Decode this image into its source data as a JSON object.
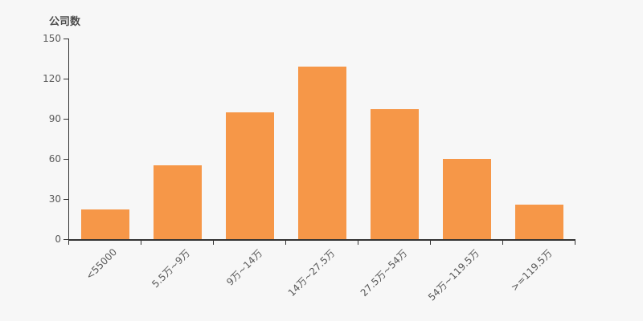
{
  "header": {
    "axis_title": "公司数"
  },
  "colors": {
    "background": "#f7f7f7",
    "bar": "#f69748",
    "axis": "#333333",
    "tick_label": "#5a5a5a",
    "title": "#4d4d4d"
  },
  "chart_data": {
    "type": "bar",
    "title": "公司数",
    "categories": [
      "<55000",
      "5.5万~9万",
      "9万~14万",
      "14万~27.5万",
      "27.5万~54万",
      "54万~119.5万",
      ">=119.5万"
    ],
    "values": [
      22,
      55,
      95,
      129,
      97,
      60,
      26
    ],
    "xlabel": "",
    "ylabel": "公司数",
    "ylim": [
      0,
      150
    ],
    "yticks": [
      0,
      30,
      60,
      90,
      120,
      150
    ],
    "grid": false,
    "legend": false,
    "x_label_rotation_deg": -45
  }
}
